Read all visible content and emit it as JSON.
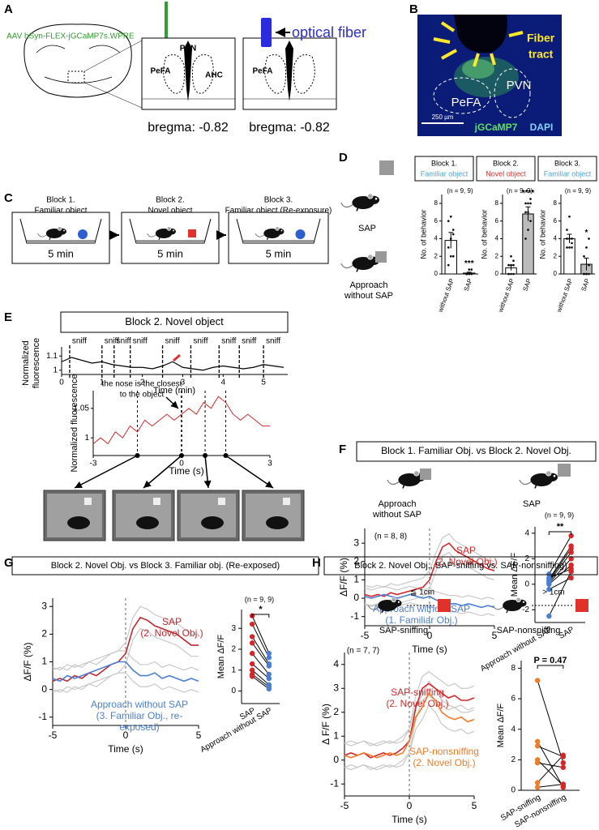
{
  "A": {
    "letter": "A",
    "virus": "AAV hSyn-FLEX-jGCaMP7s.WPRE",
    "regions": [
      "PVN",
      "PeFA",
      "AHC"
    ],
    "bregma": [
      "bregma: -0.82",
      "bregma: -0.82"
    ],
    "fiber_region": "PeFA",
    "fiber": "optical fiber"
  },
  "B": {
    "letter": "B",
    "tract": [
      "Fiber",
      "tract"
    ],
    "regions": [
      "PVN",
      "PeFA"
    ],
    "scale": "250 µm",
    "stains": [
      "jGCaMP7",
      "DAPI"
    ]
  },
  "C": {
    "letter": "C",
    "blocks": [
      {
        "title": [
          "Block 1.",
          "Familiar object"
        ],
        "duration": "5 min"
      },
      {
        "title": [
          "Block 2.",
          "Novel object"
        ],
        "duration": "5 min"
      },
      {
        "title": [
          "Block 3.",
          "Familiar object (Re-exposure)"
        ],
        "duration": "5 min"
      }
    ]
  },
  "D": {
    "letter": "D",
    "behaviors": [
      [
        "SAP"
      ],
      [
        "Approach",
        "without SAP"
      ]
    ],
    "charts": [
      {
        "type": "bar",
        "title": [
          "Block 1.",
          "Familiar object"
        ],
        "title_color": "#4aa3df",
        "n": "(n = 9, 9)",
        "ylabel": "No. of behavior",
        "categories": [
          "without SAP",
          "SAP"
        ],
        "values": [
          3.8,
          0.1
        ],
        "errors": [
          0.9,
          0.1
        ],
        "points": [
          [
            1,
            2,
            2,
            3,
            4,
            5,
            6,
            6.5,
            4.5
          ],
          [
            0,
            0,
            0,
            0,
            0,
            0,
            0,
            0.5,
            0.5
          ]
        ],
        "colors": [
          "#ffffff",
          "#bbbbbb"
        ],
        "significance": "***",
        "ylim": [
          0,
          9
        ],
        "yticks": [
          0,
          2,
          4,
          6,
          8
        ]
      },
      {
        "type": "bar",
        "title": [
          "Block 2.",
          "Novel object"
        ],
        "title_color": "#e0312b",
        "n": "(n = 9, 9)",
        "ylabel": "No. of behavior",
        "categories": [
          "without SAP",
          "SAP"
        ],
        "values": [
          0.7,
          6.8
        ],
        "errors": [
          0.3,
          0.8
        ],
        "points": [
          [
            0,
            0,
            0,
            0,
            1,
            1,
            1,
            2,
            1.5
          ],
          [
            4,
            5,
            6,
            7,
            7,
            8,
            8,
            8,
            8.5
          ]
        ],
        "colors": [
          "#ffffff",
          "#bbbbbb"
        ],
        "significance": "****",
        "ylim": [
          0,
          9
        ],
        "yticks": [
          0,
          2,
          4,
          6,
          8
        ]
      },
      {
        "type": "bar",
        "title": [
          "Block 3.",
          "Familiar object"
        ],
        "title_color": "#4aa3df",
        "n": "(n = 9, 9)",
        "ylabel": "No. of behavior",
        "categories": [
          "without SAP",
          "SAP"
        ],
        "values": [
          4.0,
          1.1
        ],
        "errors": [
          0.5,
          0.7
        ],
        "points": [
          [
            3,
            3,
            3.5,
            4,
            4,
            4,
            5,
            6.5,
            3
          ],
          [
            0,
            0,
            0,
            0,
            0,
            1,
            2,
            3,
            4
          ]
        ],
        "colors": [
          "#ffffff",
          "#bbbbbb"
        ],
        "significance": "*",
        "ylim": [
          0,
          9
        ],
        "yticks": [
          0,
          2,
          4,
          6,
          8
        ]
      }
    ]
  },
  "E": {
    "letter": "E",
    "title": "Block 2. Novel object",
    "trace": {
      "type": "line",
      "ylabel": [
        "Normalized",
        "fluorescence"
      ],
      "xlabel": "Time (min)",
      "x": [
        0,
        0.25,
        0.5,
        0.75,
        1,
        1.25,
        1.5,
        1.75,
        2,
        2.25,
        2.5,
        2.75,
        3,
        3.25,
        3.5,
        3.75,
        4,
        4.25,
        4.5,
        4.75,
        5,
        5.25,
        5.5
      ],
      "values": [
        1.06,
        1.09,
        1.07,
        1.05,
        1.06,
        1.04,
        1.03,
        1.02,
        1.02,
        1.01,
        1.03,
        1.06,
        1.02,
        1.01,
        1.0,
        1.02,
        1.03,
        1.02,
        1.01,
        1.02,
        1.04,
        1.03,
        1.02
      ],
      "color": "#000000",
      "xlim": [
        0,
        5.6
      ],
      "xticks": [
        0,
        1,
        2,
        3,
        4,
        5
      ],
      "ylim": [
        0.97,
        1.13
      ],
      "yticks": [
        1,
        1.1
      ],
      "event_label": "sniff",
      "events": [
        0.2,
        1.0,
        1.3,
        1.7,
        2.5,
        3.2,
        3.9,
        4.4,
        5.0
      ]
    },
    "zoom": {
      "type": "line",
      "annotation": [
        "the nose is the closest",
        "to the object"
      ],
      "ylabel": "Normalized fluorescence",
      "xlabel": "Time (s)",
      "x": [
        -3,
        -2.75,
        -2.5,
        -2.25,
        -2,
        -1.75,
        -1.5,
        -1.25,
        -1,
        -0.75,
        -0.5,
        -0.25,
        0,
        0.25,
        0.5,
        0.75,
        1,
        1.25,
        1.5,
        1.75,
        2,
        2.25,
        2.5,
        2.75,
        3
      ],
      "values": [
        0.99,
        1.0,
        0.99,
        1.01,
        1.0,
        1.02,
        1.01,
        1.03,
        1.02,
        1.03,
        1.04,
        1.03,
        1.04,
        1.05,
        1.04,
        1.06,
        1.05,
        1.07,
        1.06,
        1.04,
        1.03,
        1.04,
        1.03,
        1.02,
        1.02
      ],
      "color": "#d62728",
      "xlim": [
        -3,
        3
      ],
      "xticks": [
        -3,
        0,
        3
      ],
      "ylim": [
        0.97,
        1.08
      ],
      "yticks": [
        1,
        1.05
      ],
      "events": [
        -1.5,
        0,
        0.8,
        1.5
      ]
    }
  },
  "F": {
    "letter": "F",
    "title": "Block 1. Familiar Obj. vs Block 2. Novel Obj.",
    "icons": [
      [
        "Approach",
        "without SAP"
      ],
      [
        "SAP"
      ]
    ],
    "trace": {
      "type": "line",
      "n": "(n = 8, 8)",
      "ylabel": "ΔF/F (%)",
      "xlabel": "Time (s)",
      "x": [
        -5,
        -4.5,
        -4,
        -3.5,
        -3,
        -2.5,
        -2,
        -1.5,
        -1,
        -0.5,
        0,
        0.5,
        1,
        1.5,
        2,
        2.5,
        3,
        3.5,
        4,
        4.5,
        5
      ],
      "series": [
        {
          "name": [
            "SAP",
            "(2. Novel Obj.)"
          ],
          "color": "#d62728",
          "sem": 0.5,
          "values": [
            0.2,
            0.1,
            0.2,
            0.1,
            0.3,
            0.2,
            0.3,
            0.4,
            0.5,
            0.6,
            1.0,
            2.0,
            2.8,
            3.0,
            2.6,
            2.4,
            2.2,
            2.0,
            1.8,
            1.6,
            1.5
          ]
        },
        {
          "name": [
            "Approach without SAP",
            "(1. Familiar Obj.)"
          ],
          "color": "#4a7fd4",
          "sem": 0.45,
          "values": [
            0.1,
            0.0,
            0.1,
            0.2,
            0.1,
            0.0,
            0.1,
            0.2,
            0.1,
            0.0,
            0.1,
            -0.1,
            -0.2,
            -0.3,
            -0.3,
            -0.4,
            -0.3,
            -0.4,
            -0.5,
            -0.4,
            -0.5
          ]
        }
      ],
      "xlim": [
        -5,
        5
      ],
      "xticks": [
        -5,
        0,
        5
      ],
      "ylim": [
        -1.5,
        3.8
      ],
      "yticks": [
        -1,
        0,
        1,
        2,
        3
      ]
    },
    "mean": {
      "type": "paired",
      "n": "(n = 9, 9)",
      "ylabel": "Mean ΔF/F",
      "categories": [
        "Approach without SAP",
        "SAP"
      ],
      "colors": [
        "#4a7fd4",
        "#d62728"
      ],
      "values": [
        [
          -2.5,
          -0.4,
          0,
          0.1,
          0.2,
          0.3,
          0.4,
          0.8,
          0.5
        ],
        [
          1.0,
          0.5,
          1.5,
          2.0,
          2.5,
          2.8,
          3.0,
          3.8,
          1.2
        ]
      ],
      "significance": "**",
      "ylim": [
        -3,
        4.5
      ],
      "yticks": [
        -2,
        0,
        2,
        4
      ]
    }
  },
  "G": {
    "letter": "G",
    "title": "Block 2. Novel Obj. vs Block 3. Familiar obj. (Re-exposed)",
    "trace": {
      "type": "line",
      "ylabel": "ΔF/F (%)",
      "xlabel": "Time (s)",
      "x": [
        -5,
        -4.5,
        -4,
        -3.5,
        -3,
        -2.5,
        -2,
        -1.5,
        -1,
        -0.5,
        0,
        0.5,
        1,
        1.5,
        2,
        2.5,
        3,
        3.5,
        4,
        4.5,
        5
      ],
      "series": [
        {
          "name": [
            "SAP",
            "(2. Novel Obj.)"
          ],
          "color": "#c0282d",
          "sem": 0.4,
          "values": [
            0.3,
            0.4,
            0.3,
            0.5,
            0.4,
            0.6,
            0.5,
            0.7,
            0.9,
            1.0,
            1.3,
            2.2,
            2.6,
            2.5,
            2.3,
            2.2,
            2.1,
            2.0,
            1.8,
            1.6,
            1.6
          ]
        },
        {
          "name": [
            "Approach without SAP",
            "(3. Familiar Obj., re-",
            "exposed)"
          ],
          "color": "#4a7fd4",
          "sem": 0.4,
          "values": [
            0.4,
            0.3,
            0.5,
            0.4,
            0.5,
            0.6,
            0.7,
            0.8,
            0.9,
            1.0,
            1.0,
            0.7,
            0.5,
            0.5,
            0.6,
            0.4,
            0.5,
            0.4,
            0.3,
            0.4,
            0.3
          ]
        }
      ],
      "xlim": [
        -5,
        5
      ],
      "xticks": [
        -5,
        0,
        5
      ],
      "ylim": [
        -1.3,
        3.3
      ],
      "yticks": [
        -1,
        0,
        1,
        2,
        3
      ]
    },
    "mean": {
      "type": "paired",
      "n": "(n = 9, 9)",
      "ylabel": "Mean ΔF/F",
      "categories": [
        "SAP",
        "Approach without SAP"
      ],
      "colors": [
        "#d62728",
        "#4a7fd4"
      ],
      "values": [
        [
          3.6,
          3.2,
          2.6,
          2.3,
          1.8,
          1.3,
          1.0,
          0.8,
          0.7
        ],
        [
          1.8,
          1.6,
          1.3,
          1.2,
          0.8,
          0.6,
          0.3,
          0.2,
          0.1
        ]
      ],
      "significance": "*",
      "ylim": [
        -0.6,
        3.9
      ],
      "yticks": [
        0,
        1,
        2,
        3
      ]
    }
  },
  "H": {
    "letter": "H",
    "title": "Block 2. Novel Obj., SAP-sniffing vs. SAP-nonsniffing)",
    "icons": [
      {
        "distance": "≦ 1cm",
        "label": "SAP-sniffing"
      },
      {
        "distance": "> 1cm",
        "label": "SAP-nonsniffing"
      }
    ],
    "trace": {
      "type": "line",
      "n": "(n = 7, 7)",
      "ylabel": "Δ F/F (%)",
      "xlabel": "Time (s)",
      "x": [
        -5,
        -4.5,
        -4,
        -3.5,
        -3,
        -2.5,
        -2,
        -1.5,
        -1,
        -0.5,
        0,
        0.5,
        1,
        1.5,
        2,
        2.5,
        3,
        3.5,
        4,
        4.5,
        5
      ],
      "series": [
        {
          "name": [
            "SAP-sniffing",
            "(2. Novel Obj.)"
          ],
          "color": "#d62728",
          "sem": 0.5,
          "values": [
            0.2,
            0.3,
            0.2,
            0.3,
            0.1,
            0.2,
            0.3,
            0.2,
            0.3,
            0.5,
            0.8,
            2.2,
            3.0,
            3.2,
            3.0,
            2.8,
            2.6,
            2.7,
            2.5,
            2.5,
            2.6
          ]
        },
        {
          "name": [
            "SAP-nonsniffing",
            "(2. Novel Obj.)"
          ],
          "color": "#f07c2a",
          "sem": 0.5,
          "values": [
            0.2,
            0.1,
            0.2,
            0.3,
            0.2,
            0.1,
            0.2,
            0.3,
            0.2,
            0.3,
            0.8,
            1.8,
            2.2,
            2.8,
            2.5,
            2.0,
            1.8,
            1.7,
            1.8,
            1.6,
            1.7
          ]
        }
      ],
      "xlim": [
        -5,
        5
      ],
      "xticks": [
        -5,
        0,
        5
      ],
      "ylim": [
        -1.5,
        4.5
      ],
      "yticks": [
        -1,
        0,
        1,
        2,
        3,
        4
      ]
    },
    "mean": {
      "type": "paired",
      "ylabel": "Mean ΔF/F",
      "categories": [
        "SAP-sniffing",
        "SAP-nonsniffing"
      ],
      "colors": [
        "#f07c2a",
        "#d62728"
      ],
      "values": [
        [
          7.2,
          3.2,
          2.9,
          2.0,
          1.8,
          0.5,
          0.2
        ],
        [
          1.8,
          0.2,
          2.2,
          0.3,
          1.5,
          2.3,
          0.4
        ]
      ],
      "significance": "P = 0.47",
      "ylim": [
        0,
        8.5
      ],
      "yticks": [
        0,
        2,
        4,
        6,
        8
      ]
    }
  }
}
